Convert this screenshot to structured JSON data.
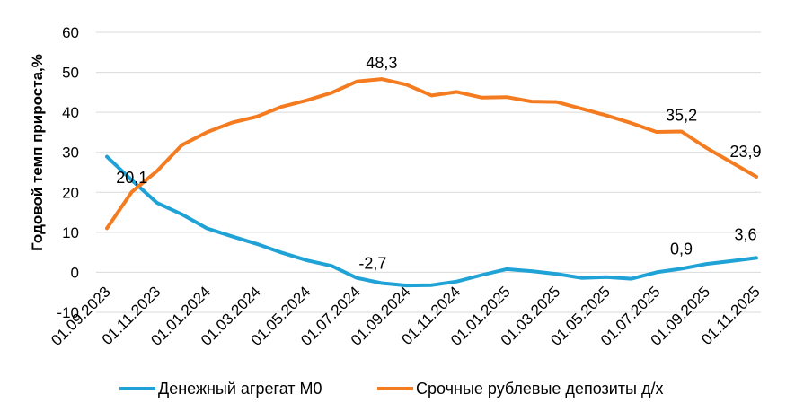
{
  "chart_data": {
    "type": "line",
    "xlabel": "",
    "ylabel": "Годовой темп прироста,%",
    "ylim": [
      -10,
      60
    ],
    "yticks": [
      "60",
      "50",
      "40",
      "30",
      "20",
      "10",
      "0",
      "-10"
    ],
    "grid": "horizontal",
    "legend_position": "bottom",
    "x_tick_labels": [
      "01.09.2023",
      "01.11.2023",
      "01.01.2024",
      "01.03.2024",
      "01.05.2024",
      "01.07.2024",
      "01.09.2024",
      "01.11.2024",
      "01.01.2025",
      "01.03.2025",
      "01.05.2025",
      "01.07.2025",
      "01.09.2025",
      "01.11.2025"
    ],
    "x": [
      "01.09.2023",
      "01.10.2023",
      "01.11.2023",
      "01.12.2023",
      "01.01.2024",
      "01.02.2024",
      "01.03.2024",
      "01.04.2024",
      "01.05.2024",
      "01.06.2024",
      "01.07.2024",
      "01.08.2024",
      "01.09.2024",
      "01.10.2024",
      "01.11.2024",
      "01.12.2024",
      "01.01.2025",
      "01.02.2025",
      "01.03.2025",
      "01.04.2025",
      "01.05.2025",
      "01.06.2025",
      "01.07.2025",
      "01.08.2025",
      "01.09.2025",
      "01.10.2025",
      "01.11.2025"
    ],
    "series": [
      {
        "name": "Денежный агрегат М0",
        "color": "#1fa2d6",
        "values": [
          28.9,
          23.0,
          17.4,
          14.5,
          11.0,
          9.0,
          7.1,
          4.9,
          3.0,
          1.6,
          -1.4,
          -2.7,
          -3.3,
          -3.2,
          -2.3,
          -0.7,
          0.8,
          0.3,
          -0.4,
          -1.4,
          -1.2,
          -1.6,
          0.0,
          0.9,
          2.1,
          2.8,
          3.6
        ]
      },
      {
        "name": "Срочные рублевые депозиты д/х",
        "color": "#f47b20",
        "values": [
          11.0,
          20.1,
          25.3,
          31.8,
          35.0,
          37.4,
          38.9,
          41.4,
          43.0,
          44.9,
          47.7,
          48.3,
          46.9,
          44.2,
          45.1,
          43.7,
          43.8,
          42.7,
          42.6,
          40.9,
          39.2,
          37.3,
          35.1,
          35.2,
          31.1,
          27.5,
          23.9
        ]
      }
    ],
    "annotations": [
      {
        "series": 1,
        "index": 1,
        "text": "20,1"
      },
      {
        "series": 1,
        "index": 11,
        "text": "48,3"
      },
      {
        "series": 1,
        "index": 23,
        "text": "35,2"
      },
      {
        "series": 1,
        "index": 26,
        "text": "23,9"
      },
      {
        "series": 0,
        "index": 11,
        "text": "-2,7"
      },
      {
        "series": 0,
        "index": 23,
        "text": "0,9"
      },
      {
        "series": 0,
        "index": 26,
        "text": "3,6"
      }
    ]
  }
}
